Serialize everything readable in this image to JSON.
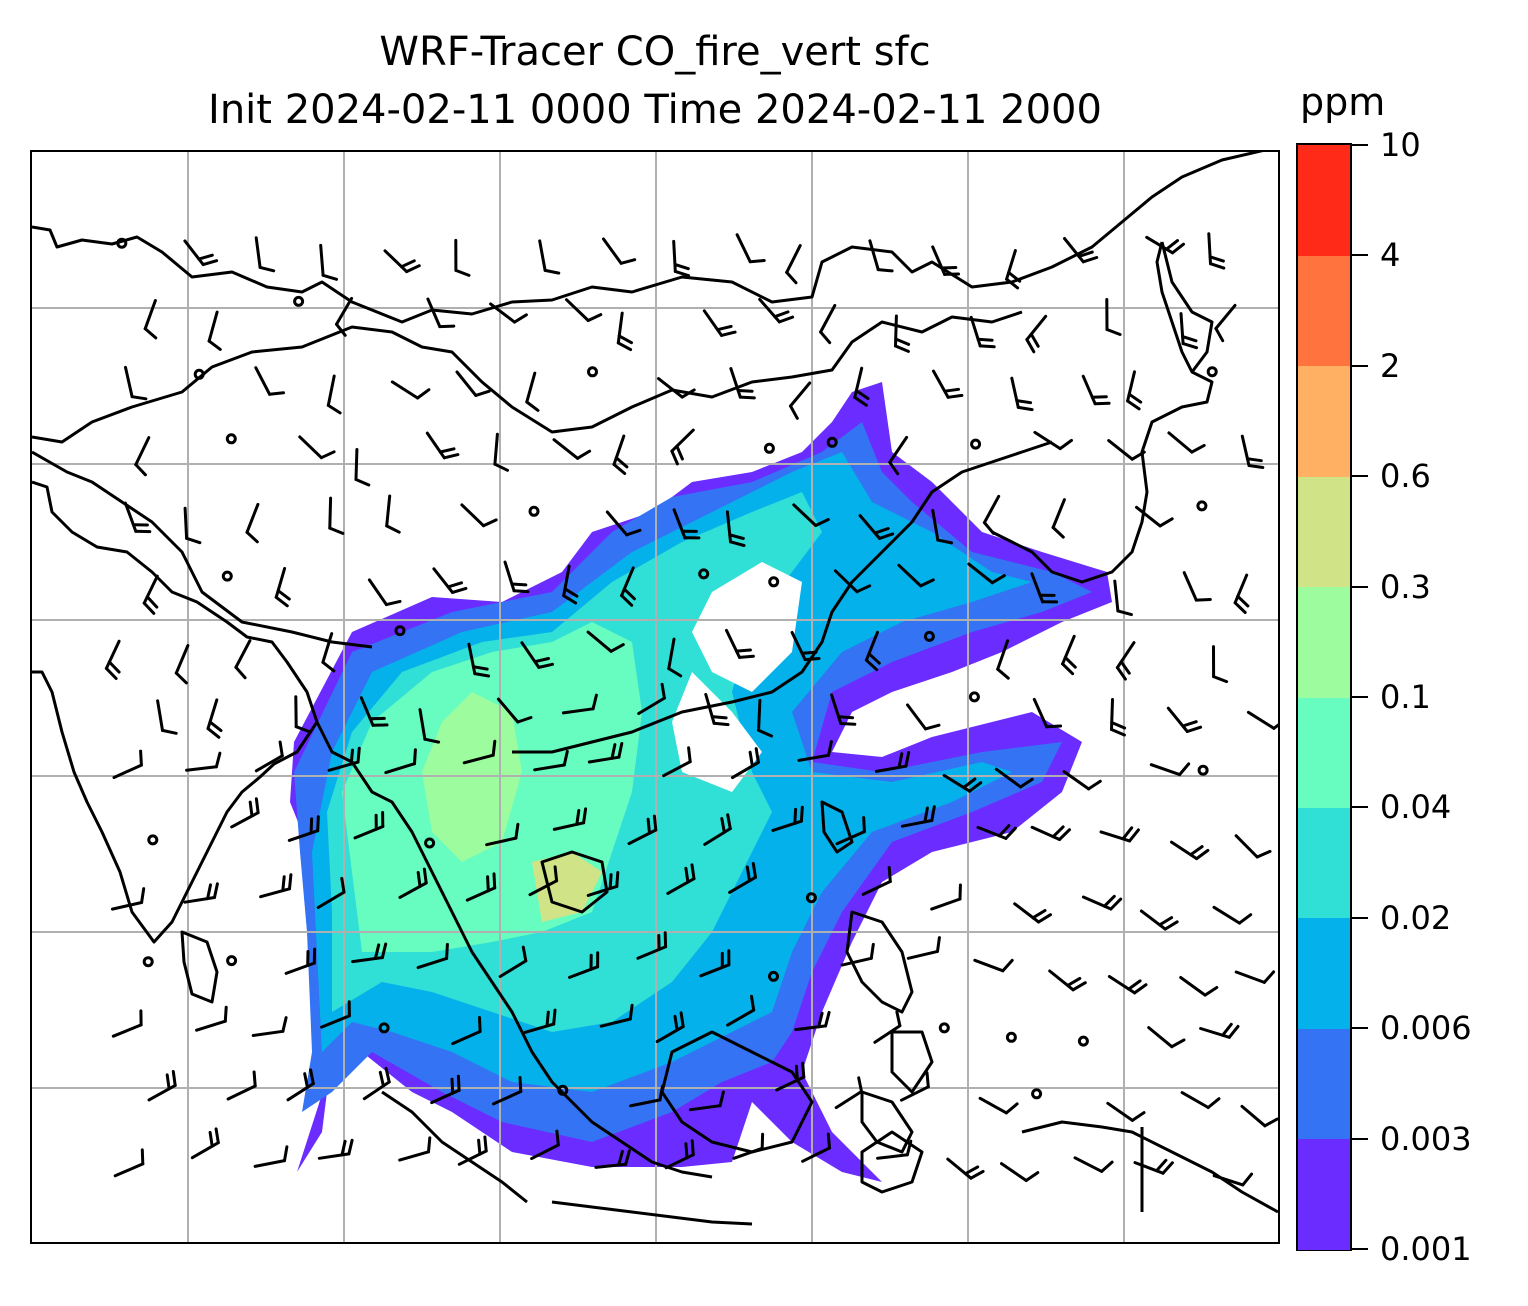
{
  "title": {
    "line1": "WRF-Tracer CO_fire_vert sfc",
    "line2": "Init 2024-02-11 0000 Time 2024-02-11 2000"
  },
  "colorbar": {
    "unit": "ppm",
    "levels": [
      "0.001",
      "0.003",
      "0.006",
      "0.02",
      "0.04",
      "0.1",
      "0.3",
      "0.6",
      "2",
      "4",
      "10"
    ],
    "colors": [
      "#6a2cff",
      "#3473f3",
      "#05b1ea",
      "#30dfd6",
      "#67fcc0",
      "#9dfc9d",
      "#d0e386",
      "#ffb062",
      "#ff733f",
      "#ff2b18"
    ]
  },
  "map": {
    "gridlines": true,
    "gridline_color": "#b0b0b0",
    "coastline_color": "#000000",
    "wind_barb_color": "#000000"
  }
}
